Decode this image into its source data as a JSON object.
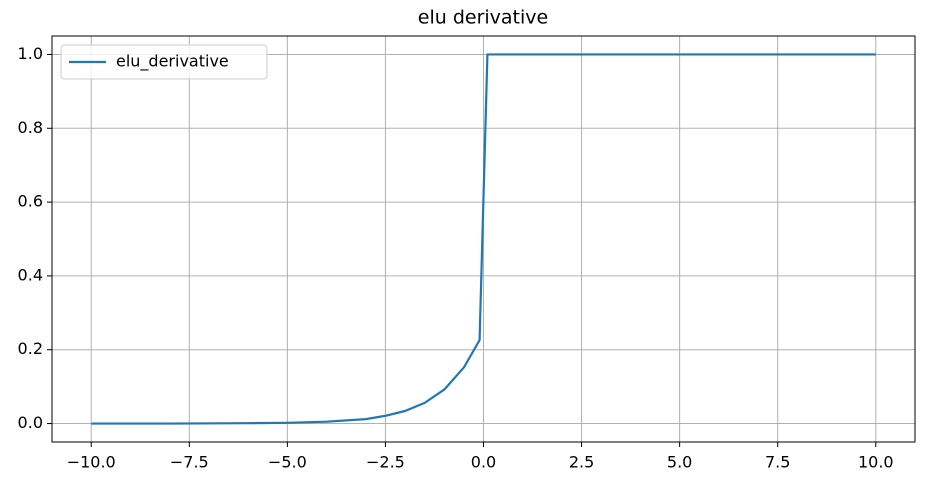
{
  "chart_data": {
    "type": "line",
    "title": "elu derivative",
    "x": [
      -10,
      -8,
      -6,
      -5,
      -4,
      -3,
      -2.5,
      -2,
      -1.5,
      -1,
      -0.5,
      -0.1,
      0.1,
      10
    ],
    "series": [
      {
        "name": "elu_derivative",
        "color": "#1f77b4",
        "values": [
          0.0,
          0.0,
          0.001,
          0.002,
          0.005,
          0.012,
          0.021,
          0.034,
          0.056,
          0.092,
          0.152,
          0.226,
          1,
          1
        ]
      }
    ],
    "xlim": [
      -11,
      11
    ],
    "ylim": [
      -0.05,
      1.05
    ],
    "xticks": [
      {
        "value": -10,
        "label": "−10.0"
      },
      {
        "value": -7.5,
        "label": "−7.5"
      },
      {
        "value": -5,
        "label": "−5.0"
      },
      {
        "value": -2.5,
        "label": "−2.5"
      },
      {
        "value": 0,
        "label": "0.0"
      },
      {
        "value": 2.5,
        "label": "2.5"
      },
      {
        "value": 5,
        "label": "5.0"
      },
      {
        "value": 7.5,
        "label": "7.5"
      },
      {
        "value": 10,
        "label": "10.0"
      }
    ],
    "yticks": [
      {
        "value": 0,
        "label": "0.0"
      },
      {
        "value": 0.2,
        "label": "0.2"
      },
      {
        "value": 0.4,
        "label": "0.4"
      },
      {
        "value": 0.6,
        "label": "0.6"
      },
      {
        "value": 0.8,
        "label": "0.8"
      },
      {
        "value": 1,
        "label": "1.0"
      }
    ],
    "grid": true,
    "legend": "upper-left"
  }
}
